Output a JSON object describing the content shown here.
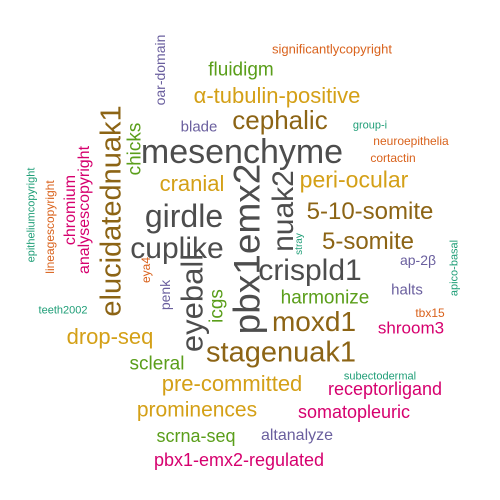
{
  "palette": {
    "dark": "#4d4d4d",
    "brown": "#8c6415",
    "gold": "#d4a017",
    "green": "#5a9e1a",
    "magenta": "#d6006e",
    "purple": "#6a5f9e",
    "orange": "#d9621c",
    "teal": "#1f9e77"
  },
  "words": [
    {
      "text": "mesenchyme",
      "color": "dark"
    },
    {
      "text": "girdle",
      "color": "dark"
    },
    {
      "text": "cuplike",
      "color": "dark"
    },
    {
      "text": "pbx1emx2",
      "color": "dark"
    },
    {
      "text": "eyeball",
      "color": "dark"
    },
    {
      "text": "nuak2",
      "color": "dark"
    },
    {
      "text": "crispld1",
      "color": "dark"
    },
    {
      "text": "stagenuak1",
      "color": "brown"
    },
    {
      "text": "moxd1",
      "color": "brown"
    },
    {
      "text": "elucidatednuak1",
      "color": "brown"
    },
    {
      "text": "cephalic",
      "color": "brown"
    },
    {
      "text": "5-10-somite",
      "color": "brown"
    },
    {
      "text": "5-somite",
      "color": "brown"
    },
    {
      "text": "peri-ocular",
      "color": "gold"
    },
    {
      "text": "α-tubulin-positive",
      "color": "gold"
    },
    {
      "text": "cranial",
      "color": "gold"
    },
    {
      "text": "drop-seq",
      "color": "gold"
    },
    {
      "text": "pre-committed",
      "color": "gold"
    },
    {
      "text": "prominences",
      "color": "gold"
    },
    {
      "text": "fluidigm",
      "color": "green"
    },
    {
      "text": "chicks",
      "color": "green"
    },
    {
      "text": "harmonize",
      "color": "green"
    },
    {
      "text": "icgs",
      "color": "green"
    },
    {
      "text": "scleral",
      "color": "green"
    },
    {
      "text": "scrna-seq",
      "color": "green"
    },
    {
      "text": "analysescopyright",
      "color": "magenta"
    },
    {
      "text": "chromium",
      "color": "magenta"
    },
    {
      "text": "shroom3",
      "color": "magenta"
    },
    {
      "text": "receptorligand",
      "color": "magenta"
    },
    {
      "text": "somatopleuric",
      "color": "magenta"
    },
    {
      "text": "pbx1-emx2-regulated",
      "color": "magenta"
    },
    {
      "text": "oar-domain",
      "color": "purple"
    },
    {
      "text": "blade",
      "color": "purple"
    },
    {
      "text": "penk",
      "color": "purple"
    },
    {
      "text": "ap-2β",
      "color": "purple"
    },
    {
      "text": "halts",
      "color": "purple"
    },
    {
      "text": "altanalyze",
      "color": "purple"
    },
    {
      "text": "significantlycopyright",
      "color": "orange"
    },
    {
      "text": "neuroepithelia",
      "color": "orange"
    },
    {
      "text": "cortactin",
      "color": "orange"
    },
    {
      "text": "lineagescopyright",
      "color": "orange"
    },
    {
      "text": "eya4",
      "color": "orange"
    },
    {
      "text": "tbx15",
      "color": "orange"
    },
    {
      "text": "group-i",
      "color": "teal"
    },
    {
      "text": "epitheliumcopyright",
      "color": "teal"
    },
    {
      "text": "teeth2002",
      "color": "teal"
    },
    {
      "text": "stray",
      "color": "teal"
    },
    {
      "text": "apico-basal",
      "color": "teal"
    },
    {
      "text": "subectodermal",
      "color": "teal"
    }
  ]
}
